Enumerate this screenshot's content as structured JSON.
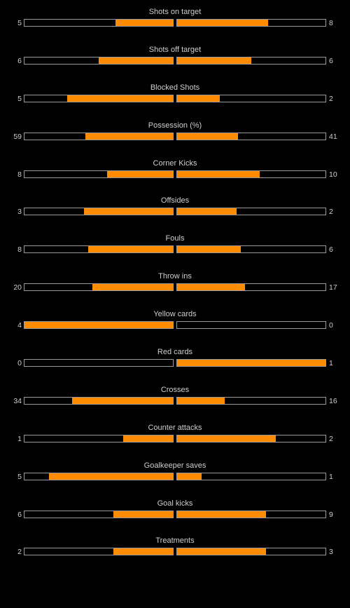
{
  "colors": {
    "background": "#000000",
    "bar_fill": "#ff8c00",
    "bar_border": "#9a9a9a",
    "text": "#cfcfcf"
  },
  "stats": [
    {
      "label": "Shots on target",
      "home": "5",
      "away": "8",
      "home_fill": 0.385,
      "away_fill": 0.615
    },
    {
      "label": "Shots off target",
      "home": "6",
      "away": "6",
      "home_fill": 0.5,
      "away_fill": 0.5
    },
    {
      "label": "Blocked Shots",
      "home": "5",
      "away": "2",
      "home_fill": 0.714,
      "away_fill": 0.286
    },
    {
      "label": "Possession (%)",
      "home": "59",
      "away": "41",
      "home_fill": 0.59,
      "away_fill": 0.41
    },
    {
      "label": "Corner Kicks",
      "home": "8",
      "away": "10",
      "home_fill": 0.444,
      "away_fill": 0.556
    },
    {
      "label": "Offsides",
      "home": "3",
      "away": "2",
      "home_fill": 0.6,
      "away_fill": 0.4
    },
    {
      "label": "Fouls",
      "home": "8",
      "away": "6",
      "home_fill": 0.571,
      "away_fill": 0.429
    },
    {
      "label": "Throw ins",
      "home": "20",
      "away": "17",
      "home_fill": 0.541,
      "away_fill": 0.459
    },
    {
      "label": "Yellow cards",
      "home": "4",
      "away": "0",
      "home_fill": 1.0,
      "away_fill": 0.0
    },
    {
      "label": "Red cards",
      "home": "0",
      "away": "1",
      "home_fill": 0.0,
      "away_fill": 1.0
    },
    {
      "label": "Crosses",
      "home": "34",
      "away": "16",
      "home_fill": 0.68,
      "away_fill": 0.32
    },
    {
      "label": "Counter attacks",
      "home": "1",
      "away": "2",
      "home_fill": 0.333,
      "away_fill": 0.667
    },
    {
      "label": "Goalkeeper saves",
      "home": "5",
      "away": "1",
      "home_fill": 0.833,
      "away_fill": 0.167
    },
    {
      "label": "Goal kicks",
      "home": "6",
      "away": "9",
      "home_fill": 0.4,
      "away_fill": 0.6
    },
    {
      "label": "Treatments",
      "home": "2",
      "away": "3",
      "home_fill": 0.4,
      "away_fill": 0.6
    }
  ]
}
